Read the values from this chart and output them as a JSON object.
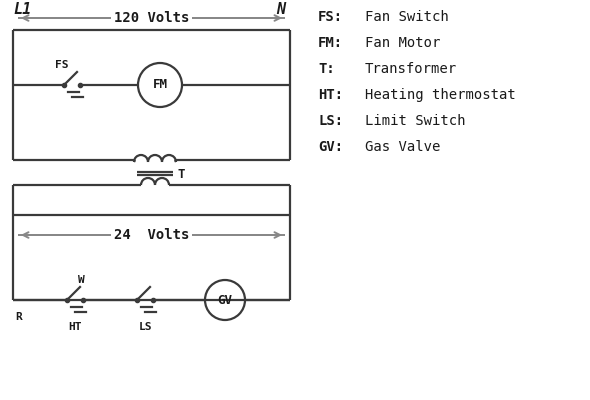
{
  "bg_color": "#ffffff",
  "line_color": "#3a3a3a",
  "arrow_color": "#888888",
  "text_color": "#1a1a1a",
  "legend": [
    [
      "FS:",
      "Fan Switch"
    ],
    [
      "FM:",
      "Fan Motor"
    ],
    [
      "T:",
      "Transformer"
    ],
    [
      "HT:",
      "Heating thermostat"
    ],
    [
      "LS:",
      "Limit Switch"
    ],
    [
      "GV:",
      "Gas Valve"
    ]
  ],
  "L1_label": "L1",
  "N_label": "N",
  "v120_label": "120 Volts",
  "v24_label": "24  Volts"
}
